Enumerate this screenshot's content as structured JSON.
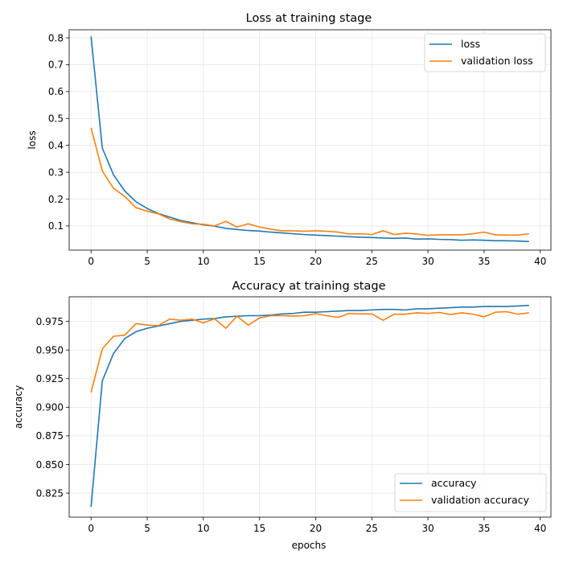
{
  "chart_data": [
    {
      "type": "line",
      "title": "Loss at training stage",
      "xlabel": "",
      "ylabel": "loss",
      "xlim": [
        -1.95,
        40.95
      ],
      "ylim": [
        0.01,
        0.83
      ],
      "xticks": [
        0,
        5,
        10,
        15,
        20,
        25,
        30,
        35,
        40
      ],
      "yticks": [
        0.1,
        0.2,
        0.3,
        0.4,
        0.5,
        0.6,
        0.7,
        0.8
      ],
      "ytick_decimals": 1,
      "grid": true,
      "legend_position": "upper-right",
      "x": [
        0,
        1,
        2,
        3,
        4,
        5,
        6,
        7,
        8,
        9,
        10,
        11,
        12,
        13,
        14,
        15,
        16,
        17,
        18,
        19,
        20,
        21,
        22,
        23,
        24,
        25,
        26,
        27,
        28,
        29,
        30,
        31,
        32,
        33,
        34,
        35,
        36,
        37,
        38,
        39
      ],
      "series": [
        {
          "name": "loss",
          "color": "#1f77b4",
          "values": [
            0.805,
            0.39,
            0.29,
            0.23,
            0.19,
            0.165,
            0.146,
            0.133,
            0.12,
            0.112,
            0.104,
            0.099,
            0.091,
            0.087,
            0.083,
            0.081,
            0.077,
            0.074,
            0.071,
            0.068,
            0.066,
            0.064,
            0.062,
            0.06,
            0.058,
            0.057,
            0.055,
            0.054,
            0.055,
            0.051,
            0.052,
            0.05,
            0.049,
            0.047,
            0.048,
            0.047,
            0.045,
            0.045,
            0.044,
            0.042
          ]
        },
        {
          "name": "validation loss",
          "color": "#ff7f0e",
          "values": [
            0.465,
            0.305,
            0.24,
            0.21,
            0.168,
            0.155,
            0.145,
            0.126,
            0.116,
            0.108,
            0.106,
            0.1,
            0.117,
            0.096,
            0.108,
            0.096,
            0.088,
            0.082,
            0.082,
            0.08,
            0.082,
            0.08,
            0.077,
            0.07,
            0.071,
            0.068,
            0.082,
            0.068,
            0.073,
            0.07,
            0.065,
            0.067,
            0.067,
            0.067,
            0.071,
            0.077,
            0.067,
            0.066,
            0.066,
            0.071
          ]
        }
      ]
    },
    {
      "type": "line",
      "title": "Accuracy at training stage",
      "xlabel": "epochs",
      "ylabel": "accuracy",
      "xlim": [
        -1.95,
        40.95
      ],
      "ylim": [
        0.804,
        0.9965
      ],
      "xticks": [
        0,
        5,
        10,
        15,
        20,
        25,
        30,
        35,
        40
      ],
      "yticks": [
        0.825,
        0.85,
        0.875,
        0.9,
        0.925,
        0.95,
        0.975
      ],
      "ytick_decimals": 3,
      "grid": true,
      "legend_position": "lower-right",
      "x": [
        0,
        1,
        2,
        3,
        4,
        5,
        6,
        7,
        8,
        9,
        10,
        11,
        12,
        13,
        14,
        15,
        16,
        17,
        18,
        19,
        20,
        21,
        22,
        23,
        24,
        25,
        26,
        27,
        28,
        29,
        30,
        31,
        32,
        33,
        34,
        35,
        36,
        37,
        38,
        39
      ],
      "series": [
        {
          "name": "accuracy",
          "color": "#1f77b4",
          "values": [
            0.813,
            0.923,
            0.947,
            0.96,
            0.966,
            0.969,
            0.971,
            0.973,
            0.975,
            0.976,
            0.977,
            0.9775,
            0.979,
            0.9795,
            0.98,
            0.98,
            0.9805,
            0.9815,
            0.982,
            0.983,
            0.983,
            0.9835,
            0.984,
            0.9845,
            0.9845,
            0.985,
            0.9855,
            0.9855,
            0.985,
            0.986,
            0.986,
            0.9865,
            0.987,
            0.9875,
            0.9875,
            0.988,
            0.988,
            0.988,
            0.9885,
            0.989
          ]
        },
        {
          "name": "validation accuracy",
          "color": "#ff7f0e",
          "values": [
            0.913,
            0.951,
            0.962,
            0.963,
            0.973,
            0.9718,
            0.9713,
            0.977,
            0.976,
            0.977,
            0.9737,
            0.9773,
            0.969,
            0.9795,
            0.9718,
            0.978,
            0.98,
            0.98,
            0.9797,
            0.98,
            0.9817,
            0.98,
            0.9785,
            0.982,
            0.9815,
            0.9815,
            0.976,
            0.9813,
            0.9813,
            0.9825,
            0.982,
            0.9828,
            0.981,
            0.9825,
            0.9813,
            0.979,
            0.983,
            0.9835,
            0.9813,
            0.9825
          ]
        }
      ]
    }
  ]
}
